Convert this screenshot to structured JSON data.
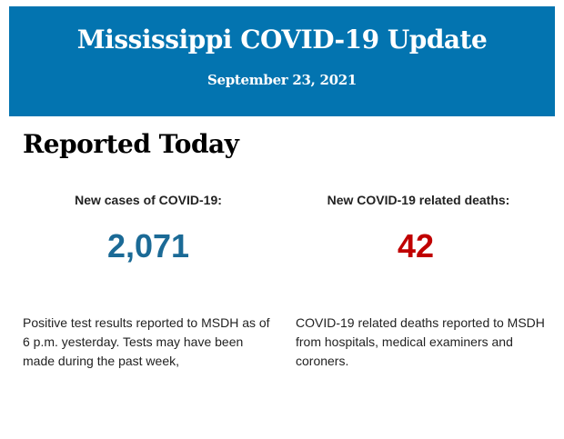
{
  "header": {
    "title": "Mississippi COVID-19 Update",
    "date": "September 23, 2021",
    "background_color": "#0374b0"
  },
  "section_title": "Reported Today",
  "stats": [
    {
      "label": "New cases of COVID-19:",
      "value": "2,071",
      "color": "#1b6a96",
      "description": "Positive test results reported to MSDH as of 6 p.m. yesterday. Tests may have been made during the past week,"
    },
    {
      "label": "New COVID-19 related deaths:",
      "value": "42",
      "color": "#c00000",
      "description": "COVID-19 related deaths reported to MSDH from hospitals, medical examiners and coroners."
    }
  ]
}
